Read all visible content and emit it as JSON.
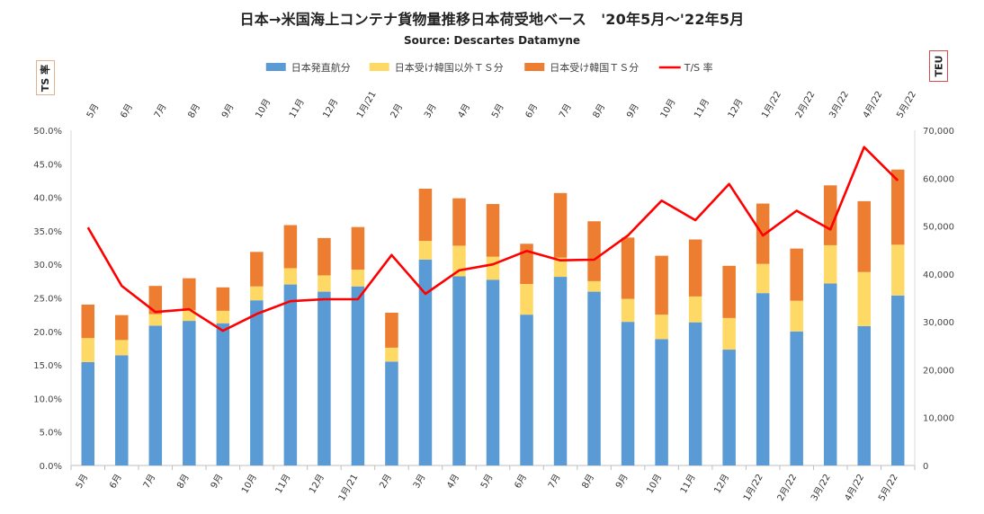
{
  "chart_data": {
    "type": "bar",
    "stacked": true,
    "title": "日本→米国海上コンテナ貨物量推移日本荷受地ベース　'20年5月～'22年5月",
    "subtitle": "Source: Descartes Datamyne",
    "left_axis_label": "TS 率",
    "right_axis_label": "TEU",
    "categories": [
      "5月",
      "6月",
      "7月",
      "8月",
      "9月",
      "10月",
      "11月",
      "12月",
      "1月/21",
      "2月",
      "3月",
      "4月",
      "5月",
      "6月",
      "7月",
      "8月",
      "9月",
      "10月",
      "11月",
      "12月",
      "1月/22",
      "2月/22",
      "3月/22",
      "4月/22",
      "5月/22"
    ],
    "series": [
      {
        "name": "日本発直航分",
        "kind": "bar",
        "axis": "right",
        "color": "#5b9bd5",
        "values": [
          21600,
          23000,
          29200,
          30200,
          29700,
          34500,
          37800,
          36300,
          37400,
          21700,
          43000,
          39500,
          38800,
          31500,
          39400,
          36300,
          30000,
          26400,
          29900,
          24200,
          36000,
          28000,
          38000,
          29100,
          35500
        ]
      },
      {
        "name": "日本受け韓国以外ＴＳ分",
        "kind": "bar",
        "axis": "right",
        "color": "#ffd966",
        "values": [
          5000,
          3200,
          2400,
          2200,
          2600,
          2900,
          3400,
          3400,
          3500,
          2900,
          3900,
          6400,
          4800,
          6400,
          4000,
          2200,
          4800,
          5100,
          5400,
          6600,
          6100,
          6400,
          8000,
          11300,
          10600
        ]
      },
      {
        "name": "日本受け韓国ＴＳ分",
        "kind": "bar",
        "axis": "right",
        "color": "#ed7d31",
        "values": [
          7000,
          5200,
          5900,
          6700,
          4900,
          7200,
          9000,
          7800,
          8900,
          7300,
          10900,
          9900,
          11000,
          8400,
          13500,
          12500,
          12800,
          12300,
          11900,
          10900,
          12600,
          10900,
          12500,
          14800,
          15700
        ]
      },
      {
        "name": "T/S 率",
        "kind": "line",
        "axis": "left",
        "color": "#ff0000",
        "values": [
          35.5,
          26.8,
          22.9,
          23.3,
          20.1,
          22.6,
          24.5,
          24.8,
          24.8,
          31.4,
          25.6,
          29.1,
          30.0,
          32.0,
          30.6,
          30.7,
          34.3,
          39.5,
          36.6,
          42.0,
          34.3,
          38.0,
          35.2,
          47.5,
          42.5
        ]
      }
    ],
    "y_left": {
      "min": 0,
      "max": 50,
      "step": 5,
      "format": "percent_1dp"
    },
    "y_right": {
      "min": 0,
      "max": 70000,
      "step": 10000,
      "format": "thousands"
    },
    "top_axis_labels": true,
    "legend_position": "top"
  }
}
